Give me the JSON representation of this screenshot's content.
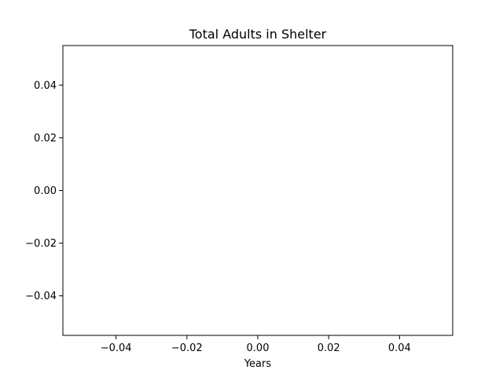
{
  "chart_data": {
    "type": "line",
    "title": "Total Adults in Shelter",
    "xlabel": "Years",
    "ylabel": "",
    "x": [],
    "series": [
      {
        "values": []
      }
    ],
    "xlim": [
      -0.055,
      0.055
    ],
    "ylim": [
      -0.055,
      0.055
    ],
    "xticks": [
      -0.04,
      -0.02,
      0.0,
      0.02,
      0.04
    ],
    "yticks": [
      -0.04,
      -0.02,
      0.0,
      0.02,
      0.04
    ],
    "xtick_labels": [
      "−0.04",
      "−0.02",
      "0.00",
      "0.02",
      "0.04"
    ],
    "ytick_labels": [
      "−0.04",
      "−0.02",
      "0.00",
      "0.02",
      "0.04"
    ],
    "grid": false,
    "legend": "none"
  }
}
